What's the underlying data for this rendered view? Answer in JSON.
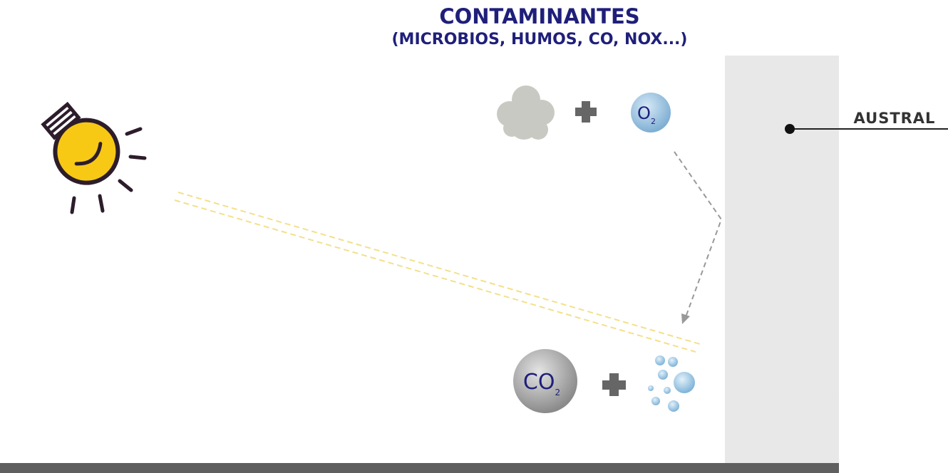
{
  "title": "CONTAMINANTES",
  "subtitle": "(MICROBIOS, HUMOS, CO, NOX...)",
  "wall_label": "AUSTRAL",
  "reactant": {
    "symbol": "O",
    "subscript": "2"
  },
  "product": {
    "symbol": "CO",
    "subscript": "2"
  }
}
